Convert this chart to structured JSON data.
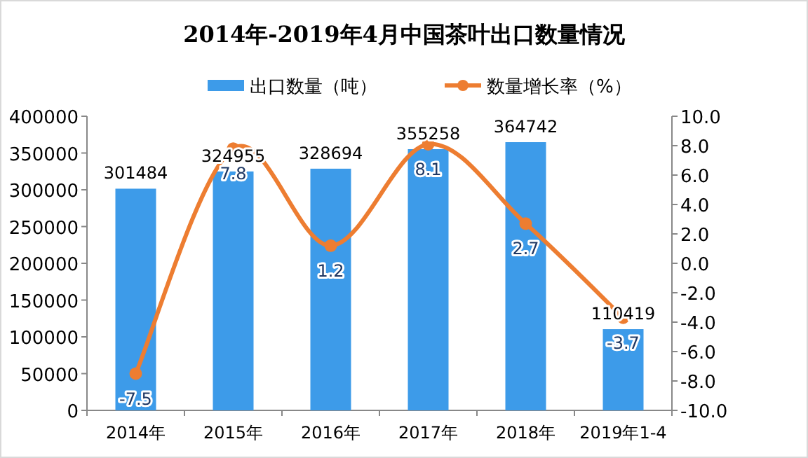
{
  "chart_data": {
    "type": "bar",
    "title": "2014年-2019年4月中国茶叶出口数量情况",
    "categories": [
      "2014年",
      "2015年",
      "2016年",
      "2017年",
      "2018年",
      "2019年1-4"
    ],
    "series": [
      {
        "name": "出口数量（吨）",
        "color": "#3d9be9",
        "values": [
          301484,
          324955,
          328694,
          355258,
          364742,
          110419
        ]
      },
      {
        "name": "数量增长率（%）",
        "type": "line",
        "axis": "y2",
        "color": "#ed7d31",
        "marker": "circle",
        "values": [
          -7.5,
          7.8,
          1.2,
          8.1,
          2.7,
          -3.7
        ]
      }
    ],
    "ylim": [
      0,
      400000
    ],
    "yticks": [
      0,
      50000,
      100000,
      150000,
      200000,
      250000,
      300000,
      350000,
      400000
    ],
    "y2lim": [
      -10,
      10
    ],
    "y2ticks": [
      {
        "value": -10,
        "label": "-10.0"
      },
      {
        "value": -8,
        "label": "-8.0"
      },
      {
        "value": -6,
        "label": "-6.0"
      },
      {
        "value": -4,
        "label": "-4.0"
      },
      {
        "value": -2,
        "label": "-2.0"
      },
      {
        "value": 0,
        "label": "0.0"
      },
      {
        "value": 2,
        "label": "2.0"
      },
      {
        "value": 4,
        "label": "4.0"
      },
      {
        "value": 6,
        "label": "6.0"
      },
      {
        "value": 8,
        "label": "8.0"
      },
      {
        "value": 10,
        "label": "10.0"
      }
    ],
    "data_labels": true,
    "legend": "top",
    "grid": false
  }
}
